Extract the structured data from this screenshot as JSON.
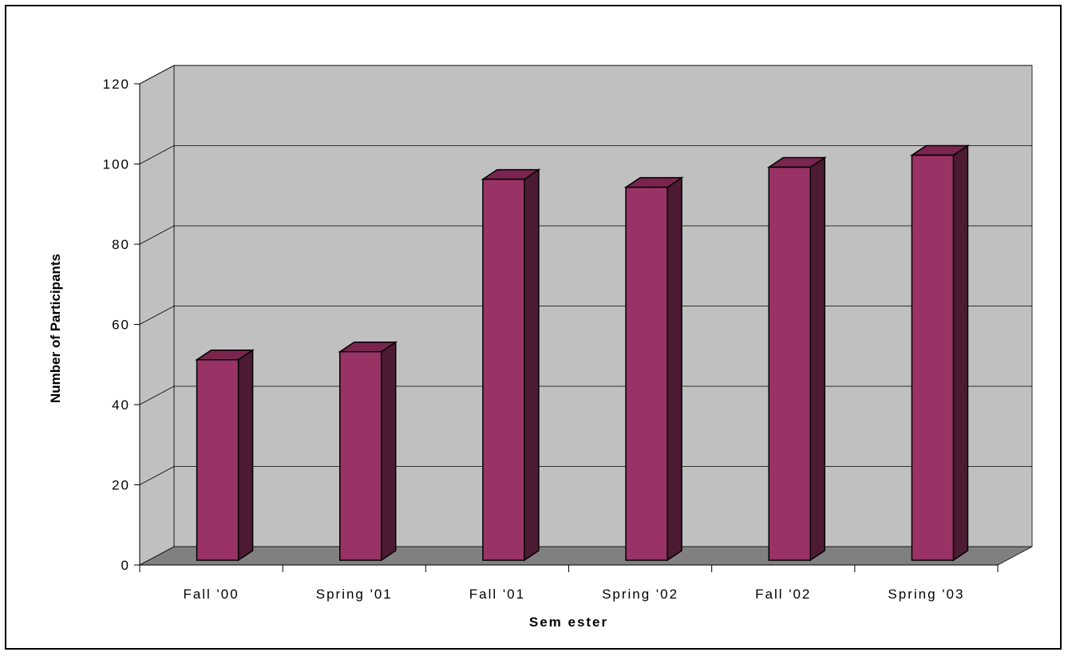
{
  "chart_data": {
    "type": "bar",
    "title": "",
    "xlabel": "Sem ester",
    "ylabel": "Number of Participants",
    "categories": [
      "Fall '00",
      "Spring '01",
      "Fall '01",
      "Spring '02",
      "Fall '02",
      "Spring '03"
    ],
    "values": [
      50,
      52,
      95,
      93,
      98,
      101
    ],
    "ylim": [
      0,
      120
    ],
    "yticks": [
      "0",
      "20",
      "40",
      "60",
      "80",
      "100",
      "120"
    ],
    "grid": true,
    "legend": "none",
    "style": "3d-column"
  },
  "colors": {
    "bar_front": "#993366",
    "bar_top": "#7a2550",
    "bar_side": "#4d1a33",
    "wall": "#c0c0c0",
    "side_wall": "#c0c0c0",
    "floor": "#808080",
    "gridline": "#000000"
  }
}
